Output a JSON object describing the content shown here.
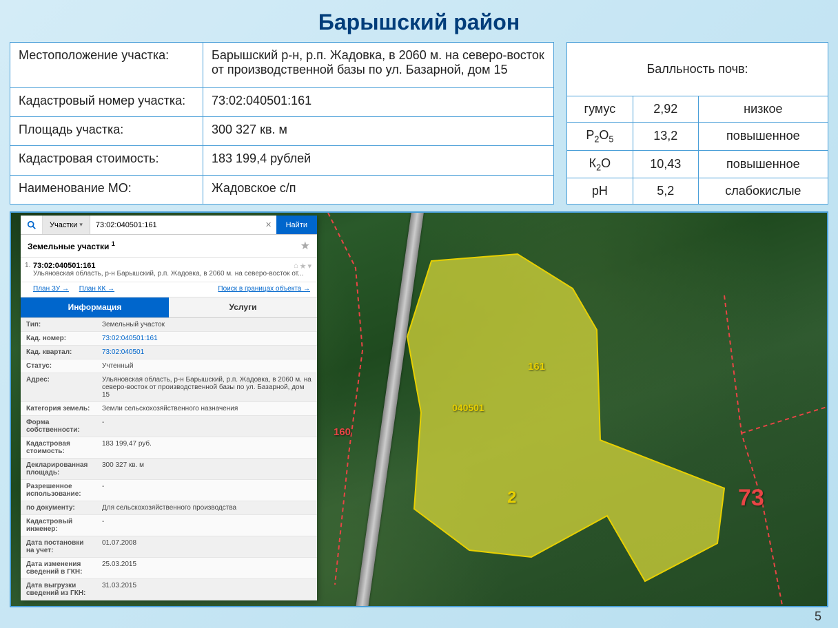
{
  "page_title": "Барышский район",
  "page_number": "5",
  "info_rows": [
    {
      "label": "Местоположение участка:",
      "value": "Барышский р-н, р.п. Жадовка, в 2060 м. на северо-восток от производственной базы по ул. Базарной, дом 15"
    },
    {
      "label": "Кадастровый номер участка:",
      "value": "73:02:040501:161"
    },
    {
      "label": "Площадь участка:",
      "value": "300 327 кв. м"
    },
    {
      "label": "Кадастровая стоимость:",
      "value": "183 199,4 рублей"
    },
    {
      "label": "Наименование МО:",
      "value": "Жадовское с/п"
    }
  ],
  "soil_header": "Балльность почв:",
  "soil_rows": [
    {
      "param_html": "гумус",
      "value": "2,92",
      "rating": "низкое"
    },
    {
      "param_html": "Р<sub>2</sub>О<sub>5</sub>",
      "value": "13,2",
      "rating": "повышенное"
    },
    {
      "param_html": "К<sub>2</sub>О",
      "value": "10,43",
      "rating": "повышенное"
    },
    {
      "param_html": "рН",
      "value": "5,2",
      "rating": "слабокислые"
    }
  ],
  "map": {
    "parcel_fill": "#d4d43a",
    "parcel_fill_opacity": 0.75,
    "parcel_stroke": "#e8d000",
    "boundary_stroke": "#e84545",
    "labels": {
      "l160": "160",
      "l161": "161",
      "l040501": "040501",
      "l2": "2",
      "l73": "73"
    }
  },
  "panel": {
    "tab_dropdown": "Участки",
    "search_value": "73:02:040501:161",
    "find_btn": "Найти",
    "subheader_title": "Земельные участки",
    "subheader_sup": "1",
    "result": {
      "num": "1.",
      "cadnum": "73:02:040501:161",
      "addr": "Ульяновская область, р-н Барышский, р.п. Жадовка, в 2060 м. на северо-восток от..."
    },
    "links": {
      "plan_zu": "План ЗУ →",
      "plan_kk": "План КК →",
      "search_bounds": "Поиск в границах объекта →"
    },
    "tabs": {
      "info": "Информация",
      "services": "Услуги"
    },
    "details": [
      {
        "k": "Тип:",
        "v": "Земельный участок",
        "link": false
      },
      {
        "k": "Кад. номер:",
        "v": "73:02:040501:161",
        "link": true
      },
      {
        "k": "Кад. квартал:",
        "v": "73:02:040501",
        "link": true
      },
      {
        "k": "Статус:",
        "v": "Учтенный",
        "link": false
      },
      {
        "k": "Адрес:",
        "v": "Ульяновская область, р-н Барышский, р.п. Жадовка, в 2060 м. на северо-восток от производственной базы по ул. Базарной, дом 15",
        "link": false
      },
      {
        "k": "Категория земель:",
        "v": "Земли сельскохозяйственного назначения",
        "link": false
      },
      {
        "k": "Форма собственности:",
        "v": "-",
        "link": false
      },
      {
        "k": "Кадастровая стоимость:",
        "v": "183 199,47 руб.",
        "link": false
      },
      {
        "k": "Декларированная площадь:",
        "v": "300 327 кв. м",
        "link": false
      },
      {
        "k": "Разрешенное использование:",
        "v": "-",
        "link": false
      },
      {
        "k": "по документу:",
        "v": "Для сельскохозяйственного производства",
        "link": false
      },
      {
        "k": "Кадастровый инженер:",
        "v": "-",
        "link": false
      },
      {
        "k": "Дата постановки на учет:",
        "v": "01.07.2008",
        "link": false
      },
      {
        "k": "Дата изменения сведений в ГКН:",
        "v": "25.03.2015",
        "link": false
      },
      {
        "k": "Дата выгрузки сведений из ГКН:",
        "v": "31.03.2015",
        "link": false
      }
    ]
  }
}
